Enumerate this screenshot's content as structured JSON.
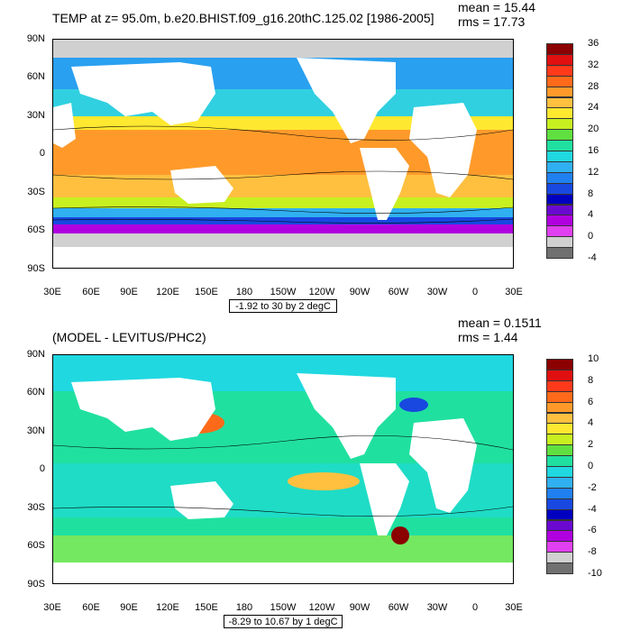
{
  "panels": [
    {
      "id": "top",
      "title": "TEMP at z=  95.0m, b.e20.BHIST.f09_g16.20thC.125.02 [1986-2005]",
      "mean_label": "mean = 15.44",
      "rms_label": "rms = 17.73",
      "range_label": "-1.92 to 30 by 2 degC",
      "y_labels": [
        "90N",
        "60N",
        "30N",
        "0",
        "30S",
        "60S",
        "90S"
      ],
      "x_labels": [
        "30E",
        "60E",
        "90E",
        "120E",
        "150E",
        "180",
        "150W",
        "120W",
        "90W",
        "60W",
        "30W",
        "0",
        "30E"
      ],
      "colorbar_labels": [
        "36",
        "32",
        "28",
        "24",
        "20",
        "16",
        "12",
        "8",
        "4",
        "0",
        "-4"
      ],
      "colorbar_colors": [
        "#8b0000",
        "#e01010",
        "#ff3a1a",
        "#ff6a1a",
        "#ff9a2a",
        "#ffc040",
        "#ffe830",
        "#c8f020",
        "#60e040",
        "#20e0a0",
        "#20d8e0",
        "#30b0f0",
        "#2080f0",
        "#1848e0",
        "#0000c0",
        "#6a0ad0",
        "#b000e0",
        "#e040f0",
        "#d0d0d0",
        "#707070"
      ]
    },
    {
      "id": "bottom",
      "title": "(MODEL - LEVITUS/PHC2)",
      "mean_label": "mean = 0.1511",
      "rms_label": "rms = 1.44",
      "range_label": "-8.29 to 10.67 by 1 degC",
      "y_labels": [
        "90N",
        "60N",
        "30N",
        "0",
        "30S",
        "60S",
        "90S"
      ],
      "x_labels": [
        "30E",
        "60E",
        "90E",
        "120E",
        "150E",
        "180",
        "150W",
        "120W",
        "90W",
        "60W",
        "30W",
        "0",
        "30E"
      ],
      "colorbar_labels": [
        "10",
        "8",
        "6",
        "4",
        "2",
        "0",
        "-2",
        "-4",
        "-6",
        "-8",
        "-10"
      ],
      "colorbar_colors": [
        "#8b0000",
        "#e01010",
        "#ff3a1a",
        "#ff6a1a",
        "#ff9a2a",
        "#ffc040",
        "#ffe830",
        "#c8f020",
        "#60e040",
        "#20e0a0",
        "#20d8e0",
        "#30b0f0",
        "#2080f0",
        "#1848e0",
        "#0000c0",
        "#6a0ad0",
        "#b000e0",
        "#e040f0",
        "#d0d0d0",
        "#707070"
      ]
    }
  ]
}
